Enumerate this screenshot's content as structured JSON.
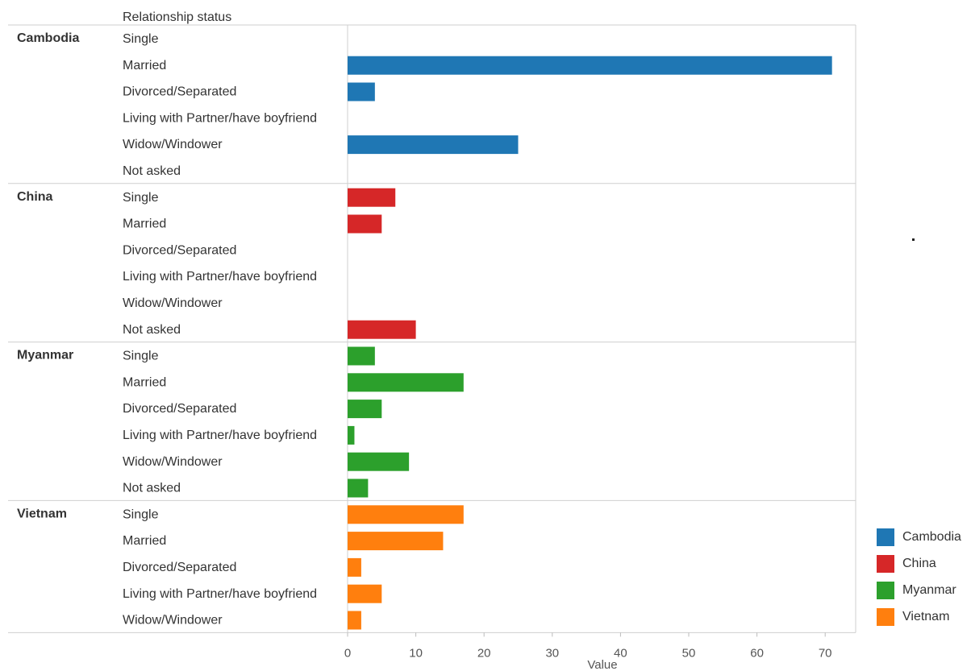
{
  "chart_data": {
    "type": "bar",
    "orientation": "horizontal",
    "column_header": "Relationship status",
    "xlabel": "Value",
    "xlim": [
      0,
      74
    ],
    "xticks": [
      0,
      10,
      20,
      30,
      40,
      50,
      60,
      70
    ],
    "legend_position": "bottom-right",
    "groups": [
      {
        "name": "Cambodia",
        "color": "#1f77b4",
        "categories": [
          "Single",
          "Married",
          "Divorced/Separated",
          "Living with Partner/have boyfriend",
          "Widow/Windower",
          "Not asked"
        ],
        "values": [
          0,
          71,
          4,
          0,
          25,
          0
        ]
      },
      {
        "name": "China",
        "color": "#d62728",
        "categories": [
          "Single",
          "Married",
          "Divorced/Separated",
          "Living with Partner/have boyfriend",
          "Widow/Windower",
          "Not asked"
        ],
        "values": [
          7,
          5,
          0,
          0,
          0,
          10
        ]
      },
      {
        "name": "Myanmar",
        "color": "#2ca02c",
        "categories": [
          "Single",
          "Married",
          "Divorced/Separated",
          "Living with Partner/have boyfriend",
          "Widow/Windower",
          "Not asked"
        ],
        "values": [
          4,
          17,
          5,
          1,
          9,
          3
        ]
      },
      {
        "name": "Vietnam",
        "color": "#ff7f0e",
        "categories": [
          "Single",
          "Married",
          "Divorced/Separated",
          "Living with Partner/have boyfriend",
          "Widow/Windower"
        ],
        "values": [
          17,
          14,
          2,
          5,
          2
        ]
      }
    ],
    "legend": [
      {
        "name": "Cambodia",
        "color": "#1f77b4"
      },
      {
        "name": "China",
        "color": "#d62728"
      },
      {
        "name": "Myanmar",
        "color": "#2ca02c"
      },
      {
        "name": "Vietnam",
        "color": "#ff7f0e"
      }
    ]
  }
}
